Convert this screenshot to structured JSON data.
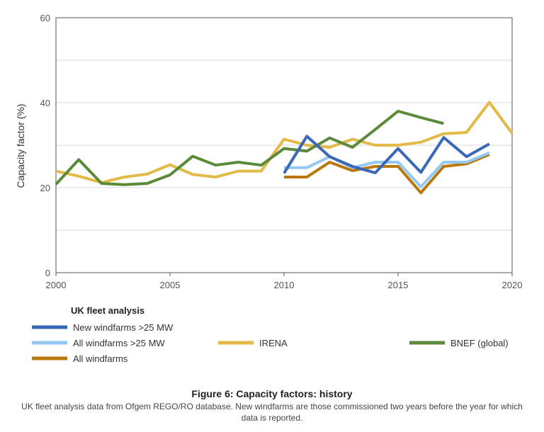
{
  "chart_data": {
    "type": "line",
    "ylabel": "Capacity factor (%)",
    "xlabel": "",
    "xlim": [
      2000,
      2020
    ],
    "ylim": [
      0,
      60
    ],
    "xticks": [
      2000,
      2005,
      2010,
      2015,
      2020
    ],
    "yticks": [
      0,
      20,
      40,
      60
    ],
    "grid": true,
    "legend_group_title": "UK fleet analysis",
    "series": [
      {
        "name": "New windfarms >25 MW",
        "color": "#3a68b8",
        "points": [
          [
            2010,
            23.4
          ],
          [
            2011,
            32.1
          ],
          [
            2012,
            27.3
          ],
          [
            2013,
            25.0
          ],
          [
            2014,
            23.5
          ],
          [
            2015,
            29.2
          ],
          [
            2016,
            23.6
          ],
          [
            2017,
            31.8
          ],
          [
            2018,
            27.3
          ],
          [
            2019,
            30.3
          ]
        ]
      },
      {
        "name": "All windfarms >25 MW",
        "color": "#93c8f0",
        "points": [
          [
            2010,
            24.7
          ],
          [
            2011,
            24.7
          ],
          [
            2012,
            27.3
          ],
          [
            2013,
            24.7
          ],
          [
            2014,
            26.0
          ],
          [
            2015,
            26.0
          ],
          [
            2016,
            20.2
          ],
          [
            2017,
            26.0
          ],
          [
            2018,
            26.0
          ],
          [
            2019,
            28.2
          ]
        ]
      },
      {
        "name": "All windfarms",
        "color": "#b9770e",
        "points": [
          [
            2010,
            22.5
          ],
          [
            2011,
            22.5
          ],
          [
            2012,
            26.0
          ],
          [
            2013,
            24.0
          ],
          [
            2014,
            25.0
          ],
          [
            2015,
            25.0
          ],
          [
            2016,
            18.8
          ],
          [
            2017,
            25.0
          ],
          [
            2018,
            25.6
          ],
          [
            2019,
            27.8
          ]
        ]
      },
      {
        "name": "IRENA",
        "color": "#e3b947",
        "points": [
          [
            2000,
            23.9
          ],
          [
            2001,
            22.7
          ],
          [
            2002,
            21.2
          ],
          [
            2003,
            22.5
          ],
          [
            2004,
            23.2
          ],
          [
            2005,
            25.4
          ],
          [
            2006,
            23.1
          ],
          [
            2007,
            22.5
          ],
          [
            2008,
            23.9
          ],
          [
            2009,
            23.9
          ],
          [
            2010,
            31.4
          ],
          [
            2011,
            30.0
          ],
          [
            2012,
            29.5
          ],
          [
            2013,
            31.4
          ],
          [
            2014,
            30.0
          ],
          [
            2015,
            30.0
          ],
          [
            2016,
            30.7
          ],
          [
            2017,
            32.7
          ],
          [
            2018,
            33.0
          ],
          [
            2019,
            40.1
          ],
          [
            2020,
            32.8
          ]
        ]
      },
      {
        "name": "BNEF (global)",
        "color": "#5b8a38",
        "points": [
          [
            2000,
            20.8
          ],
          [
            2001,
            26.6
          ],
          [
            2002,
            21.0
          ],
          [
            2003,
            20.7
          ],
          [
            2004,
            21.0
          ],
          [
            2005,
            23.0
          ],
          [
            2006,
            27.4
          ],
          [
            2007,
            25.3
          ],
          [
            2008,
            26.0
          ],
          [
            2009,
            25.3
          ],
          [
            2010,
            29.2
          ],
          [
            2011,
            28.6
          ],
          [
            2012,
            31.7
          ],
          [
            2013,
            29.5
          ],
          [
            2014,
            33.7
          ],
          [
            2015,
            38.0
          ],
          [
            2016,
            36.5
          ],
          [
            2017,
            35.1
          ]
        ]
      }
    ]
  },
  "caption": {
    "title": "Figure 6: Capacity factors: history",
    "note": "UK fleet analysis data from Ofgem REGO/RO database. New windfarms are those commissioned two years before the year for which data is reported."
  }
}
